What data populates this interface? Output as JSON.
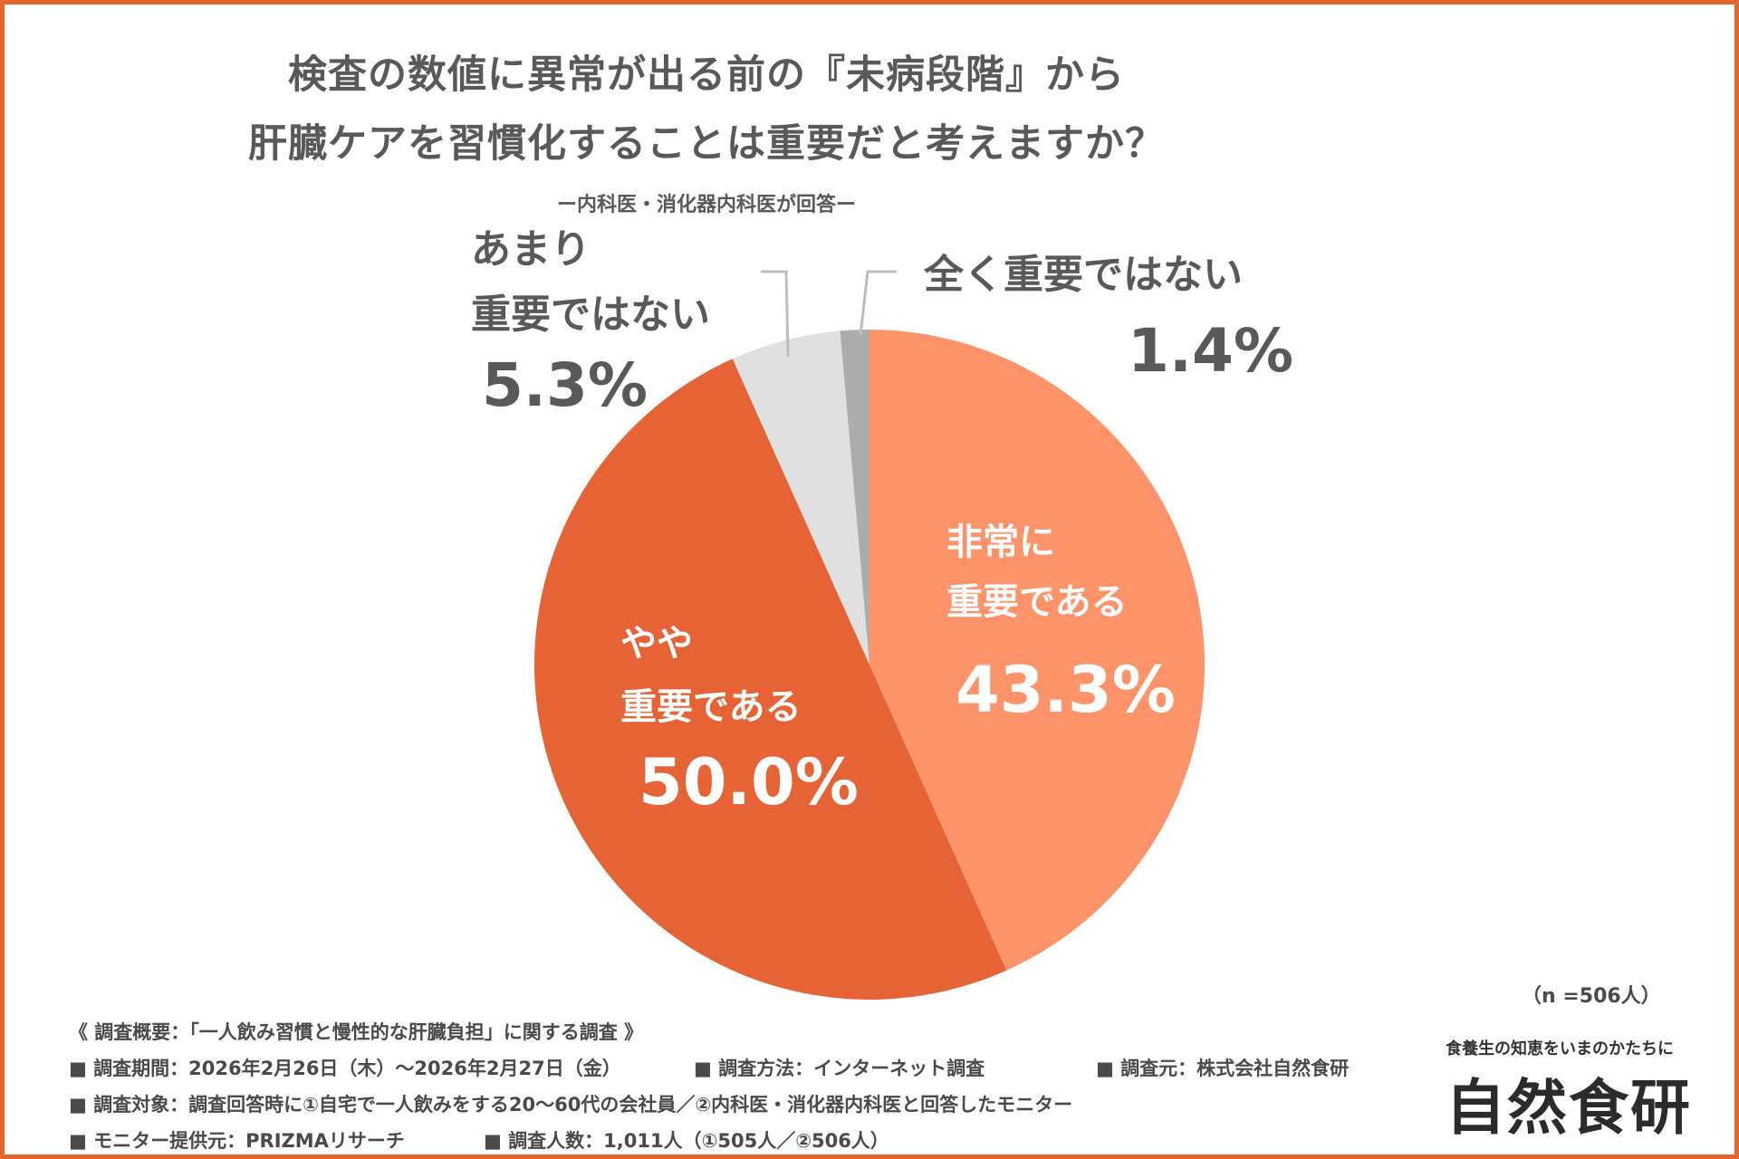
{
  "title_line1": "検査の数値に異常が出る前の『未病段階』から",
  "title_line2": "肝臓ケアを習慣化することは重要だと考えますか？",
  "subtitle": "ー内科医・消化器内科医が回答ー",
  "chart_data": {
    "type": "pie",
    "title": "検査の数値に異常が出る前の『未病段階』から肝臓ケアを習慣化することは重要だと考えますか？",
    "start": "12 o'clock, clockwise",
    "slices": [
      {
        "label_lines": [
          "非常に",
          "重要である"
        ],
        "value": 43.3,
        "pct_label": "43.3%",
        "color": "#fe9369",
        "label_position": "inside"
      },
      {
        "label_lines": [
          "やや",
          "重要である"
        ],
        "value": 50.0,
        "pct_label": "50.0%",
        "color": "#e56335",
        "label_position": "inside"
      },
      {
        "label_lines": [
          "あまり",
          "重要ではない"
        ],
        "value": 5.3,
        "pct_label": "5.3%",
        "color": "#e0e0e0",
        "label_position": "outside"
      },
      {
        "label_lines": [
          "全く重要ではない"
        ],
        "value": 1.4,
        "pct_label": "1.4%",
        "color": "#acacac",
        "label_position": "outside"
      }
    ]
  },
  "sample_size": "（n =506人）",
  "footer": {
    "heading": "《 調査概要：「一人飲み習慣と慢性的な肝臓負担」に関する調査 》",
    "period": "■ 調査期間：2026年2月26日（木）～2026年2月27日（金）",
    "method": "■ 調査方法：インターネット調査",
    "source": "■ 調査元：株式会社自然食研",
    "target": "■ 調査対象：調査回答時に①自宅で一人飲みをする20～60代の会社員／②内科医・消化器内科医と回答したモニター",
    "provider": "■ モニター提供元：PRIZMAリサーチ",
    "count": "■ 調査人数：1,011人（①505人／②506人）"
  },
  "brand": {
    "tagline": "食養生の知恵をいまのかたちに",
    "logo": "自然食研"
  }
}
